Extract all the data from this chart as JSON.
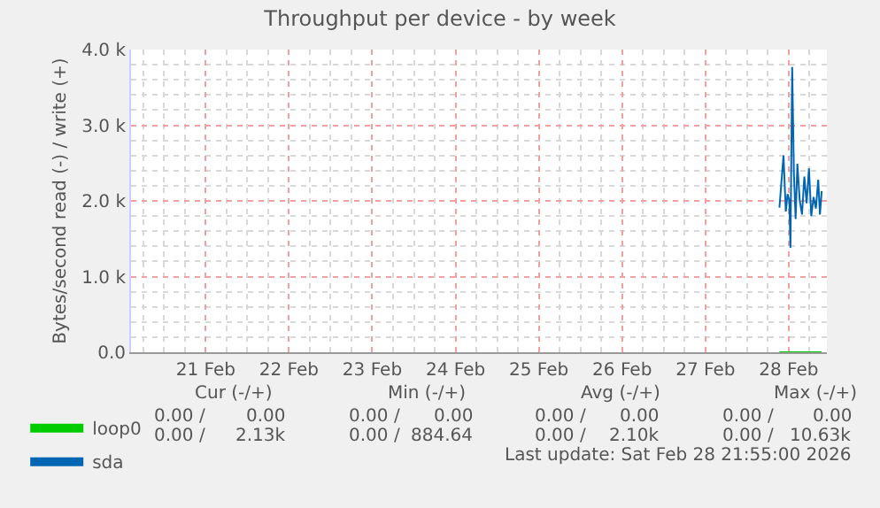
{
  "chart_data": {
    "type": "line",
    "title": "Throughput per device - by week",
    "ylabel": "Bytes/second read (-) / write (+)",
    "xlim": [
      "2026-02-20T14:30",
      "2026-02-28T23:00"
    ],
    "xticks": [
      {
        "value": "2026-02-21T12:00",
        "label": "21 Feb"
      },
      {
        "value": "2026-02-22T12:00",
        "label": "22 Feb"
      },
      {
        "value": "2026-02-23T12:00",
        "label": "23 Feb"
      },
      {
        "value": "2026-02-24T12:00",
        "label": "24 Feb"
      },
      {
        "value": "2026-02-25T12:00",
        "label": "25 Feb"
      },
      {
        "value": "2026-02-26T12:00",
        "label": "26 Feb"
      },
      {
        "value": "2026-02-27T12:00",
        "label": "27 Feb"
      },
      {
        "value": "2026-02-28T12:00",
        "label": "28 Feb"
      }
    ],
    "ylim": [
      0,
      4000
    ],
    "yticks": [
      {
        "value": 0,
        "label": "0.0"
      },
      {
        "value": 1000,
        "label": "1.0 k"
      },
      {
        "value": 2000,
        "label": "2.0 k"
      },
      {
        "value": 3000,
        "label": "3.0 k"
      },
      {
        "value": 4000,
        "label": "4.0 k"
      }
    ],
    "grid": true,
    "legend": "bottom left",
    "x": [
      "2026-02-28T09:20",
      "2026-02-28T10:30",
      "2026-02-28T11:10",
      "2026-02-28T11:40",
      "2026-02-28T12:10",
      "2026-02-28T12:30",
      "2026-02-28T13:00",
      "2026-02-28T13:30",
      "2026-02-28T14:00",
      "2026-02-28T14:30",
      "2026-02-28T15:10",
      "2026-02-28T15:50",
      "2026-02-28T16:30",
      "2026-02-28T17:10",
      "2026-02-28T17:50",
      "2026-02-28T18:30",
      "2026-02-28T19:10",
      "2026-02-28T19:50",
      "2026-02-28T20:30",
      "2026-02-28T21:00",
      "2026-02-28T21:30"
    ],
    "series": [
      {
        "name": "loop0",
        "color": "#00cc00",
        "values": [
          0,
          0,
          0,
          0,
          0,
          0,
          0,
          0,
          0,
          0,
          0,
          0,
          0,
          0,
          0,
          0,
          0,
          0,
          0,
          0,
          0
        ]
      },
      {
        "name": "sda",
        "color": "#0066b3",
        "values": [
          1910,
          2600,
          1860,
          2090,
          2010,
          1380,
          3770,
          2360,
          1760,
          2490,
          2010,
          1820,
          2320,
          1970,
          2430,
          1800,
          2050,
          1900,
          2280,
          1820,
          2130
        ]
      }
    ],
    "annotations": [
      "Cur (-/+)",
      "Min (-/+)",
      "Avg (-/+)",
      "Max (-/+)",
      "0.00 /",
      "0.00",
      "0.00 /",
      "0.00",
      "0.00 /",
      "0.00",
      "0.00 /",
      "0.00",
      "0.00 /",
      "2.13k",
      "0.00 /",
      "884.64",
      "0.00 /",
      "2.10k",
      "0.00 /",
      "10.63k",
      "Last update: Sat Feb 28 21:55:00 2026"
    ]
  }
}
